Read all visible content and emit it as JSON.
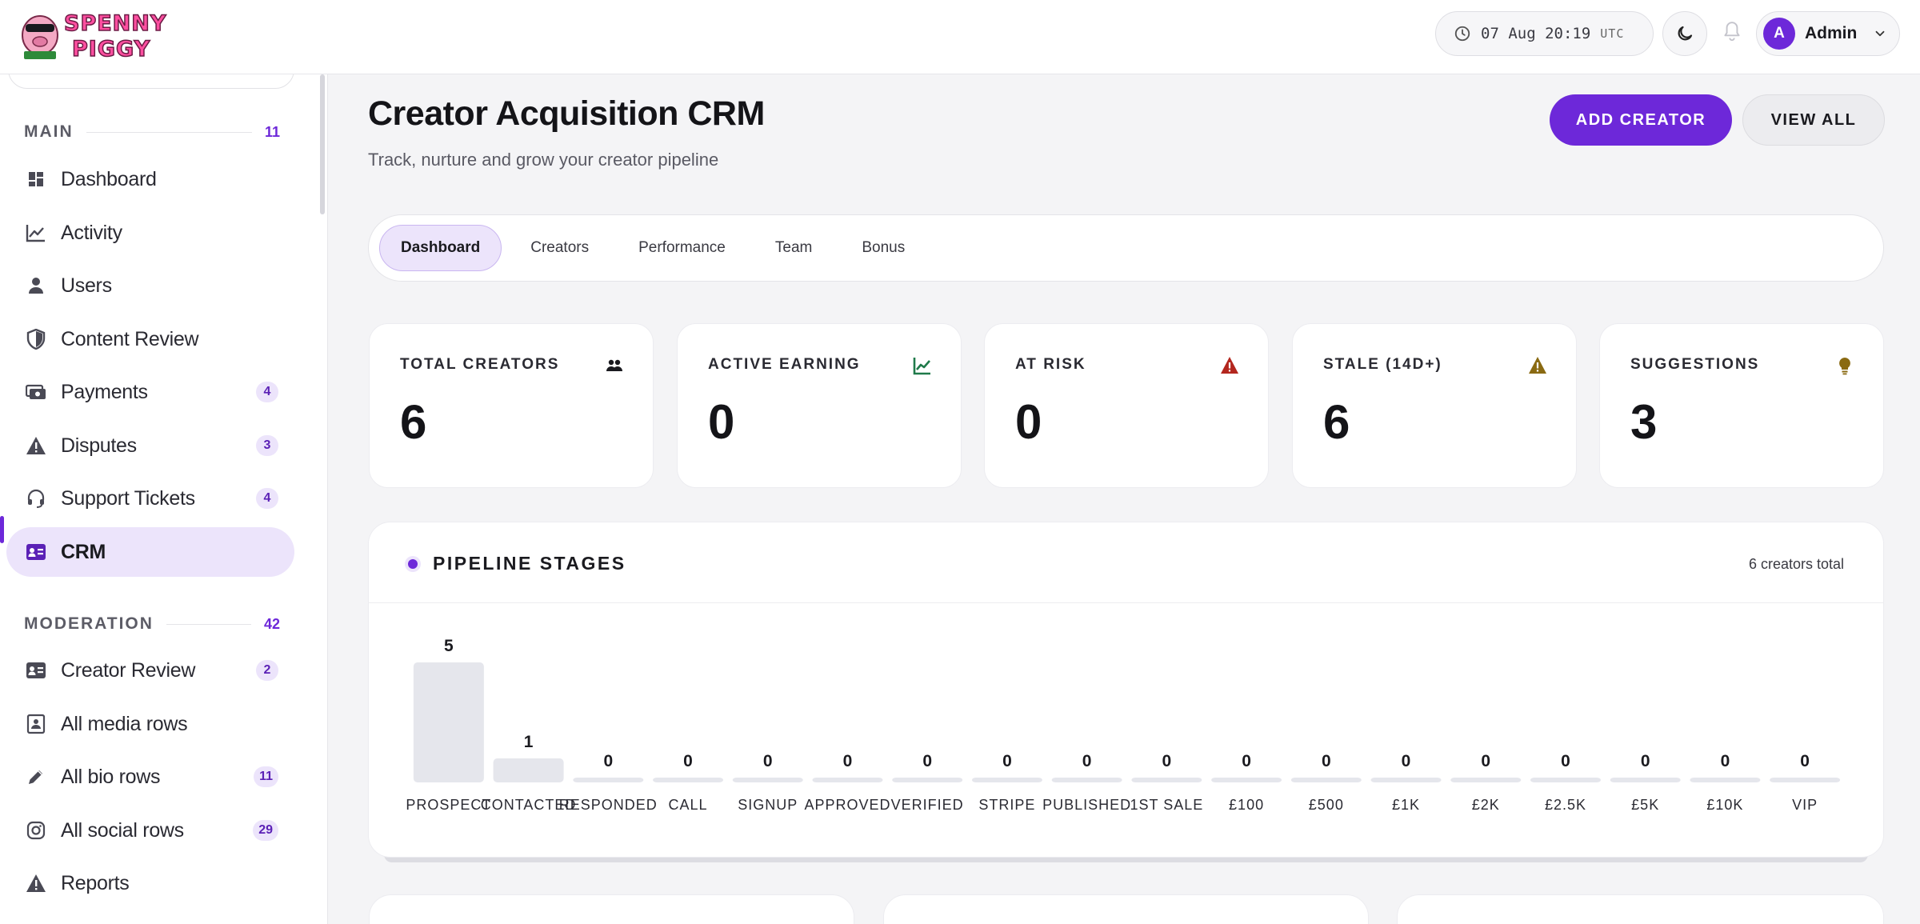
{
  "header": {
    "brand_logo_text": "SPENNY PIGGY",
    "clock_time": "07 Aug 20:19",
    "clock_zone": "UTC",
    "user_initial": "A",
    "user_name": "Admin"
  },
  "sidebar": {
    "main_section": {
      "title": "MAIN",
      "count": "11"
    },
    "main_items": [
      {
        "label": "Dashboard",
        "icon": "dashboard-icon",
        "badge": ""
      },
      {
        "label": "Activity",
        "icon": "activity-icon",
        "badge": ""
      },
      {
        "label": "Users",
        "icon": "user-icon",
        "badge": ""
      },
      {
        "label": "Content Review",
        "icon": "shield-icon",
        "badge": ""
      },
      {
        "label": "Payments",
        "icon": "payments-icon",
        "badge": "4"
      },
      {
        "label": "Disputes",
        "icon": "warning-icon",
        "badge": "3"
      },
      {
        "label": "Support Tickets",
        "icon": "headset-icon",
        "badge": "4"
      },
      {
        "label": "CRM",
        "icon": "id-card-icon",
        "badge": "",
        "active": true
      }
    ],
    "moderation_section": {
      "title": "MODERATION",
      "count": "42"
    },
    "moderation_items": [
      {
        "label": "Creator Review",
        "icon": "id-card-icon",
        "badge": "2"
      },
      {
        "label": "All media rows",
        "icon": "media-icon",
        "badge": ""
      },
      {
        "label": "All bio rows",
        "icon": "pencil-icon",
        "badge": "11"
      },
      {
        "label": "All social rows",
        "icon": "instagram-icon",
        "badge": "29"
      },
      {
        "label": "Reports",
        "icon": "warning-icon",
        "badge": ""
      }
    ]
  },
  "main": {
    "title": "Creator Acquisition CRM",
    "subtitle": "Track, nurture and grow your creator pipeline",
    "add_button": "ADD CREATOR",
    "view_all_button": "VIEW ALL",
    "tabs": [
      "Dashboard",
      "Creators",
      "Performance",
      "Team",
      "Bonus"
    ],
    "active_tab": "Dashboard",
    "stats": [
      {
        "label": "TOTAL CREATORS",
        "value": "6",
        "icon": "users-icon",
        "color": "#1a1a1f"
      },
      {
        "label": "ACTIVE EARNING",
        "value": "0",
        "icon": "trend-icon",
        "color": "#1f7a4a"
      },
      {
        "label": "AT RISK",
        "value": "0",
        "icon": "warning-icon",
        "color": "#b3261e"
      },
      {
        "label": "STALE (14D+)",
        "value": "6",
        "icon": "warning-icon",
        "color": "#8a6a12"
      },
      {
        "label": "SUGGESTIONS",
        "value": "3",
        "icon": "lightbulb-icon",
        "color": "#8a6a12"
      }
    ],
    "pipeline": {
      "title": "PIPELINE STAGES",
      "total_text": "6 creators total"
    }
  },
  "chart_data": {
    "type": "bar",
    "title": "PIPELINE STAGES",
    "categories": [
      "PROSPECT",
      "CONTACTED",
      "RESPONDED",
      "CALL",
      "SIGNUP",
      "APPROVED",
      "VERIFIED",
      "STRIPE",
      "PUBLISHED",
      "1ST SALE",
      "£100",
      "£500",
      "£1K",
      "£2K",
      "£2.5K",
      "£5K",
      "£10K",
      "VIP"
    ],
    "values": [
      5,
      1,
      0,
      0,
      0,
      0,
      0,
      0,
      0,
      0,
      0,
      0,
      0,
      0,
      0,
      0,
      0,
      0
    ],
    "xlabel": "",
    "ylabel": "",
    "ylim": [
      0,
      5
    ],
    "grid": false,
    "bar_color": "#e5e6ec"
  }
}
